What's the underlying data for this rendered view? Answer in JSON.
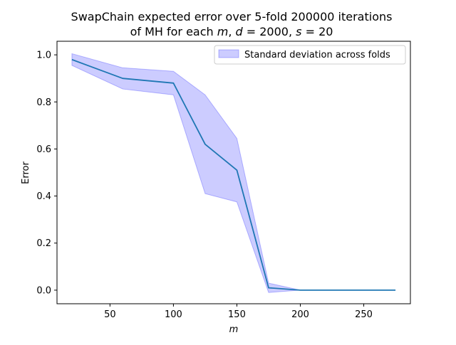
{
  "chart_data": {
    "type": "line",
    "title_line1": "SwapChain expected error over 5-fold 200000 iterations",
    "title_line2_parts": [
      "of MH for each ",
      "m",
      ", ",
      "d",
      " = 2000, ",
      "s",
      " = 20"
    ],
    "xlabel": "m",
    "ylabel": "Error",
    "xlim": [
      8.25,
      286.75
    ],
    "ylim": [
      -0.05775,
      1.05775
    ],
    "xticks": [
      50,
      100,
      150,
      200,
      250
    ],
    "xtick_labels": [
      "50",
      "100",
      "150",
      "200",
      "250"
    ],
    "yticks": [
      0.0,
      0.2,
      0.4,
      0.6,
      0.8,
      1.0
    ],
    "ytick_labels": [
      "0.0",
      "0.2",
      "0.4",
      "0.6",
      "0.8",
      "1.0"
    ],
    "grid": false,
    "legend_position": "top-right",
    "x": [
      20,
      60,
      100,
      125,
      150,
      175,
      200,
      225,
      250,
      275
    ],
    "series": [
      {
        "values": [
          0.98,
          0.9,
          0.88,
          0.62,
          0.51,
          0.01,
          0.0,
          0.0,
          0.0,
          0.0
        ],
        "color": "#1f77b4"
      }
    ],
    "band": {
      "name": "Standard deviation across folds",
      "upper": [
        1.005,
        0.945,
        0.93,
        0.83,
        0.645,
        0.03,
        0.0,
        0.0,
        0.0,
        0.0
      ],
      "lower": [
        0.955,
        0.855,
        0.83,
        0.41,
        0.375,
        -0.01,
        0.0,
        0.0,
        0.0,
        0.0
      ],
      "fill_color": "#0000ff",
      "fill_opacity": 0.2
    }
  }
}
